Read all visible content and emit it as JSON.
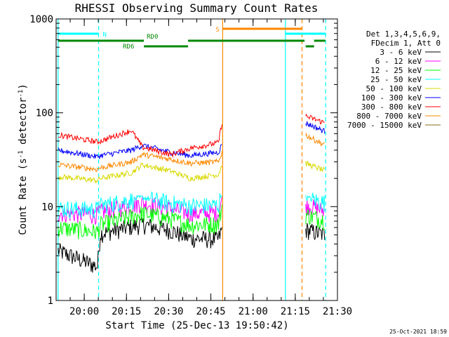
{
  "chart_data": {
    "type": "line",
    "title": "RHESSI Observing Summary Count Rates",
    "xlabel": "Start Time (25-Dec-13 19:50:42)",
    "ylabel_main": "Count Rate (s",
    "ylabel_sup1": "-1",
    "ylabel_mid": " detector",
    "ylabel_sup2": "-1",
    "ylabel_end": ")",
    "yscale": "log",
    "ylim": [
      1,
      1000
    ],
    "xlim_min": [
      -0.7,
      99.3
    ],
    "x_ticks": [
      {
        "min": 9.3,
        "label": "20:00"
      },
      {
        "min": 24.3,
        "label": "20:15"
      },
      {
        "min": 39.3,
        "label": "20:30"
      },
      {
        "min": 54.3,
        "label": "20:45"
      },
      {
        "min": 69.3,
        "label": "21:00"
      },
      {
        "min": 84.3,
        "label": "21:15"
      },
      {
        "min": 99.3,
        "label": "21:30"
      }
    ],
    "y_ticks": [
      {
        "value": 1,
        "label": "1"
      },
      {
        "value": 10,
        "label": "10"
      },
      {
        "value": 100,
        "label": "100"
      },
      {
        "value": 1000,
        "label": "1000"
      }
    ],
    "legend": {
      "header": [
        "Det 1,3,4,5,6,9,",
        "FDecim 1, Att 0"
      ],
      "placement": "right"
    },
    "series": [
      {
        "name": "3 - 6 keV",
        "color": "#000000",
        "points": [
          [
            0,
            3.4
          ],
          [
            14,
            2.3
          ],
          [
            15,
            5.2
          ],
          [
            30,
            6.5
          ],
          [
            40,
            5.6
          ],
          [
            47,
            4.6
          ],
          [
            57,
            4.5
          ],
          [
            58.5,
            6
          ],
          [
            88,
            5.7
          ],
          [
            95,
            5.0
          ]
        ]
      },
      {
        "name": "6 - 12 keV",
        "color": "#ff00ff",
        "points": [
          [
            0,
            8.6
          ],
          [
            14,
            8.2
          ],
          [
            15,
            8.8
          ],
          [
            30,
            11
          ],
          [
            40,
            9.5
          ],
          [
            47,
            8.5
          ],
          [
            57,
            8.6
          ],
          [
            58.5,
            13
          ],
          [
            88,
            10.5
          ],
          [
            95,
            9.0
          ]
        ]
      },
      {
        "name": "12 - 25 keV",
        "color": "#00ff00",
        "points": [
          [
            0,
            6.0
          ],
          [
            14,
            5.4
          ],
          [
            15,
            6.4
          ],
          [
            30,
            8.5
          ],
          [
            40,
            7.4
          ],
          [
            47,
            6.4
          ],
          [
            57,
            6.6
          ],
          [
            58.5,
            11
          ],
          [
            88,
            8.2
          ],
          [
            95,
            7.2
          ]
        ]
      },
      {
        "name": "25 - 50 keV",
        "color": "#00ffff",
        "points": [
          [
            0,
            9.6
          ],
          [
            14,
            9.4
          ],
          [
            15,
            10.3
          ],
          [
            30,
            12.5
          ],
          [
            40,
            11
          ],
          [
            47,
            10.2
          ],
          [
            57,
            10.4
          ],
          [
            58.5,
            15
          ],
          [
            88,
            12.5
          ],
          [
            95,
            11
          ]
        ]
      },
      {
        "name": "50 - 100 keV",
        "color": "#d8d800",
        "points": [
          [
            0,
            21
          ],
          [
            14,
            19
          ],
          [
            15,
            20
          ],
          [
            26,
            23
          ],
          [
            30,
            28
          ],
          [
            40,
            24
          ],
          [
            47,
            20
          ],
          [
            57,
            22
          ],
          [
            58.5,
            29
          ],
          [
            88,
            29
          ],
          [
            95,
            24
          ]
        ]
      },
      {
        "name": "100 - 300 keV",
        "color": "#0000ff",
        "points": [
          [
            0,
            40
          ],
          [
            14,
            34
          ],
          [
            15,
            35
          ],
          [
            26,
            40
          ],
          [
            30,
            45
          ],
          [
            40,
            38
          ],
          [
            47,
            35
          ],
          [
            57,
            38
          ],
          [
            58.5,
            48
          ],
          [
            88,
            78
          ],
          [
            95,
            63
          ]
        ]
      },
      {
        "name": "300 - 800 keV",
        "color": "#ff0000",
        "points": [
          [
            0,
            58
          ],
          [
            14,
            49
          ],
          [
            15,
            50
          ],
          [
            26,
            65
          ],
          [
            30,
            43
          ],
          [
            40,
            36
          ],
          [
            47,
            42
          ],
          [
            57,
            48
          ],
          [
            58.5,
            88
          ],
          [
            88,
            92
          ],
          [
            95,
            78
          ]
        ]
      },
      {
        "name": "800 - 7000 keV",
        "color": "#ff8800",
        "points": [
          [
            0,
            28
          ],
          [
            14,
            25
          ],
          [
            15,
            26
          ],
          [
            26,
            30
          ],
          [
            30,
            36
          ],
          [
            40,
            32
          ],
          [
            47,
            29
          ],
          [
            57,
            30
          ],
          [
            58.5,
            40
          ],
          [
            88,
            58
          ],
          [
            95,
            45
          ]
        ]
      },
      {
        "name": "7000 - 15000 keV",
        "color": "#8b6914",
        "points": []
      }
    ],
    "gaps_min": [
      [
        -0.7,
        0
      ],
      [
        58.5,
        88
      ],
      [
        95,
        99.3
      ]
    ],
    "vlines": [
      {
        "min": 0,
        "color": "#00ffff",
        "dash": false
      },
      {
        "min": 14.4,
        "color": "#00ffff",
        "dash": true
      },
      {
        "min": 58.5,
        "color": "#ff8800",
        "dash": false
      },
      {
        "min": 80.8,
        "color": "#00ffff",
        "dash": false
      },
      {
        "min": 86.7,
        "color": "#ff8800",
        "dash": true
      },
      {
        "min": 95.1,
        "color": "#00ffff",
        "dash": true
      }
    ],
    "flag_bars": [
      {
        "label": "N",
        "color": "#00ffff",
        "segments": [
          [
            0,
            14.4
          ],
          [
            80.8,
            95.1
          ]
        ],
        "level": 1
      },
      {
        "label": "S",
        "color": "#ff8800",
        "segments": [
          [
            58.5,
            86.7
          ]
        ],
        "level": 0
      },
      {
        "label": "RD0",
        "color": "#008800",
        "segments": [
          [
            0,
            30.5
          ],
          [
            46.2,
            87.6
          ],
          [
            91,
            95
          ]
        ],
        "level": 2
      },
      {
        "label": "RD6",
        "color": "#008800",
        "segments": [
          [
            30.5,
            46.2
          ],
          [
            88,
            91
          ]
        ],
        "level": 3
      }
    ],
    "footer": "25-Oct-2021 18:59"
  }
}
